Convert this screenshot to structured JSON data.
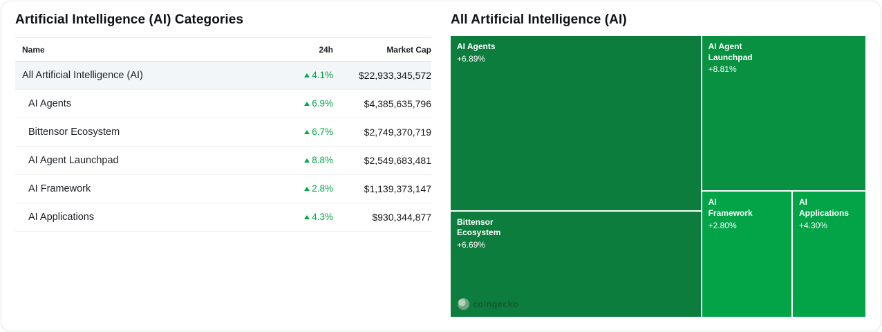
{
  "left_panel": {
    "title": "Artificial Intelligence (AI) Categories",
    "columns": {
      "name": "Name",
      "change_24h": "24h",
      "market_cap": "Market Cap"
    },
    "rows": [
      {
        "name": "All Artificial Intelligence (AI)",
        "change_24h": "4.1%",
        "market_cap": "$22,933,345,572"
      },
      {
        "name": "AI Agents",
        "change_24h": "6.9%",
        "market_cap": "$4,385,635,796"
      },
      {
        "name": "Bittensor Ecosystem",
        "change_24h": "6.7%",
        "market_cap": "$2,749,370,719"
      },
      {
        "name": "AI Agent Launchpad",
        "change_24h": "8.8%",
        "market_cap": "$2,549,683,481"
      },
      {
        "name": "AI Framework",
        "change_24h": "2.8%",
        "market_cap": "$1,139,373,147"
      },
      {
        "name": "AI Applications",
        "change_24h": "4.3%",
        "market_cap": "$930,344,877"
      }
    ]
  },
  "right_panel": {
    "title": "All Artificial Intelligence (AI)",
    "watermark": "coingecko",
    "tiles": [
      {
        "name": "AI Agents",
        "change": "+6.89%",
        "color": "#0c7d3d"
      },
      {
        "name": "AI Agent Launchpad",
        "change": "+8.81%",
        "color": "#089140"
      },
      {
        "name": "Bittensor Ecosystem",
        "change": "+6.69%",
        "color": "#0c7d3d"
      },
      {
        "name": "AI Framework",
        "change": "+2.80%",
        "color": "#03a348"
      },
      {
        "name": "AI Applications",
        "change": "+4.30%",
        "color": "#03a348"
      }
    ]
  },
  "colors": {
    "positive_green": "#00a843",
    "highlight_row_bg": "#f3f6f9"
  },
  "chart_data": {
    "type": "heatmap",
    "subtype": "treemap",
    "title": "All Artificial Intelligence (AI)",
    "items": [
      {
        "label": "AI Agents",
        "change_pct": 6.89,
        "market_cap_usd": 4385635796
      },
      {
        "label": "AI Agent Launchpad",
        "change_pct": 8.81,
        "market_cap_usd": 2549683481
      },
      {
        "label": "Bittensor Ecosystem",
        "change_pct": 6.69,
        "market_cap_usd": 2749370719
      },
      {
        "label": "AI Framework",
        "change_pct": 2.8,
        "market_cap_usd": 1139373147
      },
      {
        "label": "AI Applications",
        "change_pct": 4.3,
        "market_cap_usd": 930344877
      }
    ]
  }
}
